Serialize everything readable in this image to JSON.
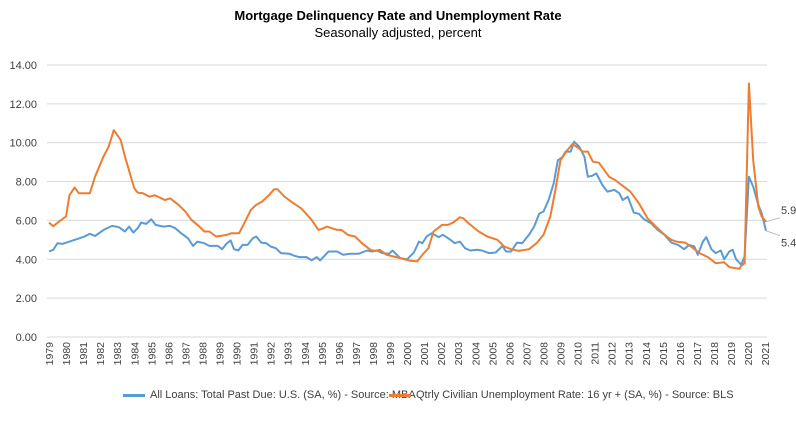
{
  "chart_data": {
    "type": "line",
    "title": "Mortgage Delinquency Rate and Unemployment Rate",
    "subtitle": "Seasonally adjusted, percent",
    "xlabel": "",
    "ylabel": "",
    "ylim": [
      0,
      14
    ],
    "xlim": [
      1979,
      2021
    ],
    "yticks": [
      "0.00",
      "2.00",
      "4.00",
      "6.00",
      "8.00",
      "10.00",
      "12.00",
      "14.00"
    ],
    "xticks": [
      "1979",
      "1980",
      "1981",
      "1982",
      "1983",
      "1984",
      "1985",
      "1986",
      "1987",
      "1988",
      "1989",
      "1990",
      "1991",
      "1992",
      "1993",
      "1994",
      "1995",
      "1996",
      "1997",
      "1998",
      "1999",
      "2000",
      "2001",
      "2002",
      "2003",
      "2004",
      "2005",
      "2006",
      "2007",
      "2008",
      "2009",
      "2010",
      "2011",
      "2012",
      "2013",
      "2014",
      "2015",
      "2016",
      "2017",
      "2018",
      "2019",
      "2020",
      "2021"
    ],
    "grid": true,
    "legend_position": "bottom",
    "series": [
      {
        "name": "All Loans: Total Past Due: U.S. (SA, %) - Source: MBA",
        "color": "#5B9BD5",
        "end_label": "5.47",
        "x": [
          1979.0,
          1979.25,
          1979.5,
          1979.8,
          1980.2,
          1980.6,
          1981.0,
          1981.4,
          1981.7,
          1982.2,
          1982.7,
          1983.1,
          1983.45,
          1983.7,
          1983.95,
          1984.2,
          1984.4,
          1984.7,
          1985.0,
          1985.25,
          1985.7,
          1986.1,
          1986.4,
          1986.75,
          1987.15,
          1987.45,
          1987.7,
          1988.1,
          1988.4,
          1988.9,
          1989.15,
          1989.4,
          1989.65,
          1989.85,
          1990.1,
          1990.35,
          1990.65,
          1990.95,
          1991.15,
          1991.45,
          1991.75,
          1992.0,
          1992.3,
          1992.6,
          1993.1,
          1993.4,
          1993.7,
          1994.1,
          1994.4,
          1994.7,
          1994.9,
          1995.4,
          1995.9,
          1996.25,
          1996.65,
          1997.15,
          1997.65,
          1997.95,
          1998.25,
          1998.55,
          1998.95,
          1999.15,
          1999.4,
          1999.6,
          2000.0,
          2000.4,
          2000.7,
          2000.9,
          2001.15,
          2001.45,
          2001.85,
          2002.1,
          2002.5,
          2002.8,
          2003.1,
          2003.4,
          2003.7,
          2004.1,
          2004.4,
          2004.8,
          2005.2,
          2005.6,
          2005.8,
          2006.1,
          2006.45,
          2006.75,
          2007.15,
          2007.45,
          2007.75,
          2008.0,
          2008.3,
          2008.6,
          2008.85,
          2009.1,
          2009.3,
          2009.6,
          2009.8,
          2010.1,
          2010.4,
          2010.6,
          2010.85,
          2011.1,
          2011.45,
          2011.75,
          2012.15,
          2012.45,
          2012.65,
          2012.95,
          2013.3,
          2013.6,
          2013.9,
          2014.3,
          2014.7,
          2015.1,
          2015.5,
          2015.9,
          2016.25,
          2016.55,
          2016.85,
          2017.05,
          2017.35,
          2017.55,
          2017.85,
          2018.1,
          2018.4,
          2018.6,
          2018.9,
          2019.1,
          2019.3,
          2019.6,
          2019.8,
          2020.05,
          2020.3,
          2020.6,
          2020.8,
          2021.05
        ],
        "y": [
          4.4,
          4.49,
          4.83,
          4.79,
          4.91,
          5.03,
          5.14,
          5.31,
          5.2,
          5.51,
          5.72,
          5.65,
          5.43,
          5.68,
          5.38,
          5.6,
          5.89,
          5.82,
          6.06,
          5.77,
          5.68,
          5.72,
          5.6,
          5.34,
          5.08,
          4.69,
          4.91,
          4.83,
          4.69,
          4.69,
          4.52,
          4.79,
          4.97,
          4.52,
          4.45,
          4.74,
          4.74,
          5.08,
          5.17,
          4.86,
          4.83,
          4.66,
          4.57,
          4.32,
          4.28,
          4.18,
          4.11,
          4.11,
          3.94,
          4.11,
          3.94,
          4.4,
          4.4,
          4.23,
          4.28,
          4.28,
          4.45,
          4.4,
          4.45,
          4.32,
          4.28,
          4.45,
          4.23,
          4.06,
          4.0,
          4.35,
          4.91,
          4.83,
          5.17,
          5.34,
          5.14,
          5.26,
          5.03,
          4.83,
          4.91,
          4.57,
          4.45,
          4.49,
          4.45,
          4.32,
          4.35,
          4.69,
          4.4,
          4.4,
          4.86,
          4.83,
          5.26,
          5.68,
          6.34,
          6.46,
          7.05,
          7.91,
          9.1,
          9.25,
          9.54,
          9.54,
          10.05,
          9.79,
          9.28,
          8.25,
          8.29,
          8.42,
          7.83,
          7.48,
          7.57,
          7.4,
          7.05,
          7.22,
          6.4,
          6.34,
          6.06,
          5.86,
          5.51,
          5.26,
          4.86,
          4.74,
          4.52,
          4.74,
          4.66,
          4.23,
          4.91,
          5.14,
          4.52,
          4.32,
          4.45,
          4.0,
          4.4,
          4.49,
          4.0,
          3.72,
          4.14,
          8.25,
          7.74,
          6.8,
          6.37,
          5.47
        ]
      },
      {
        "name": "Qtrly Civilian Unemployment Rate: 16 yr + (SA, %) - Source: BLS",
        "color": "#ED7D31",
        "end_label": "5.93",
        "x": [
          1979.0,
          1979.25,
          1979.6,
          1980.0,
          1980.2,
          1980.5,
          1980.75,
          1981.4,
          1981.7,
          1982.2,
          1982.5,
          1982.8,
          1983.2,
          1983.45,
          1983.75,
          1984.0,
          1984.2,
          1984.5,
          1984.9,
          1985.2,
          1985.8,
          1986.1,
          1986.6,
          1987.0,
          1987.35,
          1987.8,
          1988.1,
          1988.4,
          1988.8,
          1989.4,
          1989.7,
          1990.15,
          1990.45,
          1990.85,
          1991.15,
          1991.5,
          1991.9,
          1992.2,
          1992.4,
          1992.8,
          1993.2,
          1993.8,
          1994.4,
          1994.8,
          1995.1,
          1995.3,
          1995.9,
          1996.15,
          1996.55,
          1996.95,
          1997.35,
          1997.85,
          1998.1,
          1998.4,
          1998.8,
          1999.6,
          2000.2,
          2000.6,
          2000.9,
          2001.25,
          2001.55,
          2002.05,
          2002.4,
          2002.7,
          2003.1,
          2003.3,
          2003.6,
          2004.2,
          2004.7,
          2005.3,
          2005.7,
          2006.1,
          2006.55,
          2007.15,
          2007.6,
          2008.0,
          2008.4,
          2008.7,
          2009.0,
          2009.4,
          2009.7,
          2010.0,
          2010.3,
          2010.6,
          2010.9,
          2011.25,
          2011.85,
          2012.2,
          2012.7,
          2013.1,
          2013.6,
          2014.1,
          2014.6,
          2015.1,
          2015.5,
          2015.8,
          2016.3,
          2016.65,
          2017.15,
          2017.65,
          2018.1,
          2018.6,
          2018.9,
          2019.5,
          2019.6,
          2019.8,
          2020.05,
          2020.3,
          2020.6,
          2020.8,
          2021.05
        ],
        "y": [
          5.89,
          5.7,
          5.95,
          6.2,
          7.3,
          7.7,
          7.4,
          7.4,
          8.25,
          9.3,
          9.8,
          10.65,
          10.15,
          9.3,
          8.4,
          7.65,
          7.43,
          7.4,
          7.22,
          7.3,
          7.05,
          7.14,
          6.8,
          6.45,
          6.03,
          5.7,
          5.43,
          5.43,
          5.17,
          5.25,
          5.34,
          5.34,
          5.85,
          6.55,
          6.8,
          6.97,
          7.3,
          7.6,
          7.6,
          7.23,
          6.97,
          6.62,
          6.03,
          5.51,
          5.6,
          5.68,
          5.51,
          5.51,
          5.25,
          5.17,
          4.83,
          4.49,
          4.43,
          4.49,
          4.23,
          4.06,
          3.92,
          3.89,
          4.23,
          4.57,
          5.43,
          5.77,
          5.77,
          5.89,
          6.16,
          6.11,
          5.86,
          5.43,
          5.17,
          5.0,
          4.66,
          4.52,
          4.43,
          4.52,
          4.83,
          5.26,
          6.2,
          7.57,
          9.1,
          9.62,
          9.93,
          9.76,
          9.54,
          9.54,
          9.02,
          8.97,
          8.25,
          8.08,
          7.74,
          7.48,
          6.88,
          6.11,
          5.68,
          5.26,
          5.0,
          4.91,
          4.86,
          4.66,
          4.32,
          4.11,
          3.8,
          3.85,
          3.6,
          3.51,
          3.66,
          3.8,
          13.05,
          9.1,
          6.71,
          6.2,
          5.93
        ]
      }
    ]
  }
}
